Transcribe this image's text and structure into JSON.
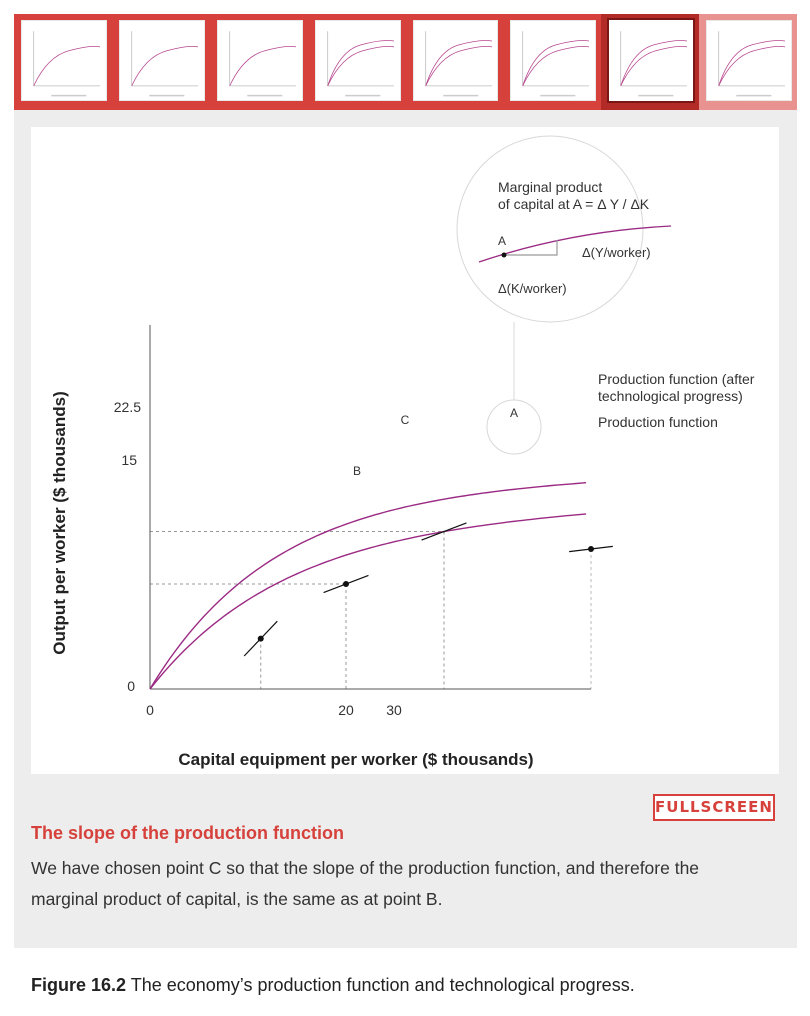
{
  "thumbnails": {
    "count": 8,
    "active_index": 6,
    "colors": {
      "strip": "#d6413b",
      "active": "#b32b26",
      "upcoming": "#e89390"
    }
  },
  "chart_data": {
    "type": "line",
    "xlabel": "Capital equipment per worker ($ thousands)",
    "ylabel": "Output per worker ($ thousands)",
    "x_ticks": [
      "0",
      "20",
      "30"
    ],
    "y_ticks": [
      "0",
      "15",
      "22.5"
    ],
    "series": [
      {
        "name": "Production function",
        "points": [
          [
            0,
            0
          ],
          [
            10,
            6
          ],
          [
            20,
            15
          ],
          [
            40,
            19.5
          ],
          [
            45,
            20
          ],
          [
            55,
            21.3
          ]
        ]
      },
      {
        "name": "Production function (after technological progress)",
        "points": [
          [
            0,
            0
          ],
          [
            10,
            9
          ],
          [
            20,
            18
          ],
          [
            30,
            22.5
          ],
          [
            45,
            25.6
          ],
          [
            55,
            27
          ]
        ]
      }
    ],
    "points": [
      {
        "label": "A",
        "x": 45,
        "y": 20
      },
      {
        "label": "B",
        "x": 20,
        "y": 15
      },
      {
        "label": "C",
        "x": 30,
        "y": 22.5
      }
    ],
    "legend": {
      "after_line1": "Production function (after",
      "after_line2": "technological progress)",
      "base": "Production function"
    },
    "zoom": {
      "title_line1": "Marginal product",
      "title_line2": "of capital at A = Δ Y / ΔK",
      "point_label": "A",
      "dy_label": "Δ(Y/worker)",
      "dx_label": "Δ(K/worker)"
    },
    "colors": {
      "curve": "#9b2a84",
      "grid": "#999999",
      "axis": "#666666"
    }
  },
  "fullscreen_label": "FULLSCREEN",
  "caption": {
    "title": "The slope of the production function",
    "text": "We have chosen point C so that the slope of the production function, and therefore the marginal product of capital, is the same as at point B."
  },
  "figure": {
    "number": "Figure 16.2",
    "text": " The economy’s production function and technological progress."
  }
}
